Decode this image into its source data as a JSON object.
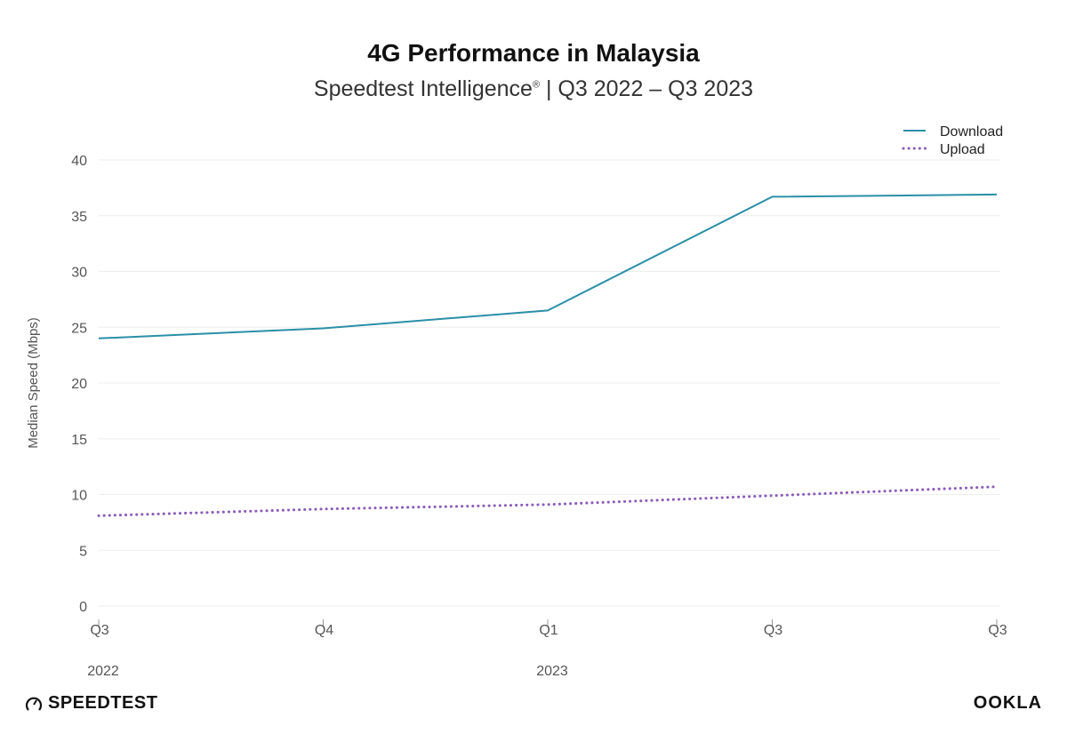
{
  "chart_data": {
    "type": "line",
    "title": "4G Performance in Malaysia",
    "subtitle": "Speedtest Intelligence",
    "subtitle_mark": "®",
    "subtitle_period": " | Q3 2022 – Q3 2023",
    "ylabel": "Median Speed (Mbps)",
    "xlabel": "",
    "ylim": [
      0,
      40
    ],
    "yticks": [
      0,
      5,
      10,
      15,
      20,
      25,
      30,
      35,
      40
    ],
    "grid": true,
    "legend_placement": "top-right",
    "categories": [
      {
        "label": "Q3",
        "year": "2022"
      },
      {
        "label": "Q4",
        "year": ""
      },
      {
        "label": "Q1",
        "year": "2023"
      },
      {
        "label": "Q3",
        "year": ""
      },
      {
        "label": "Q3",
        "year": ""
      }
    ],
    "series": [
      {
        "name": "Download",
        "style": "solid",
        "color": "#2a8fa6",
        "values": [
          24.0,
          24.9,
          26.5,
          36.7,
          36.9
        ]
      },
      {
        "name": "Upload",
        "style": "dotted",
        "color": "#8a5ab8",
        "values": [
          8.1,
          8.7,
          9.1,
          9.9,
          10.7
        ]
      }
    ]
  },
  "branding": {
    "left": "SPEEDTEST",
    "right": "OOKLA"
  }
}
